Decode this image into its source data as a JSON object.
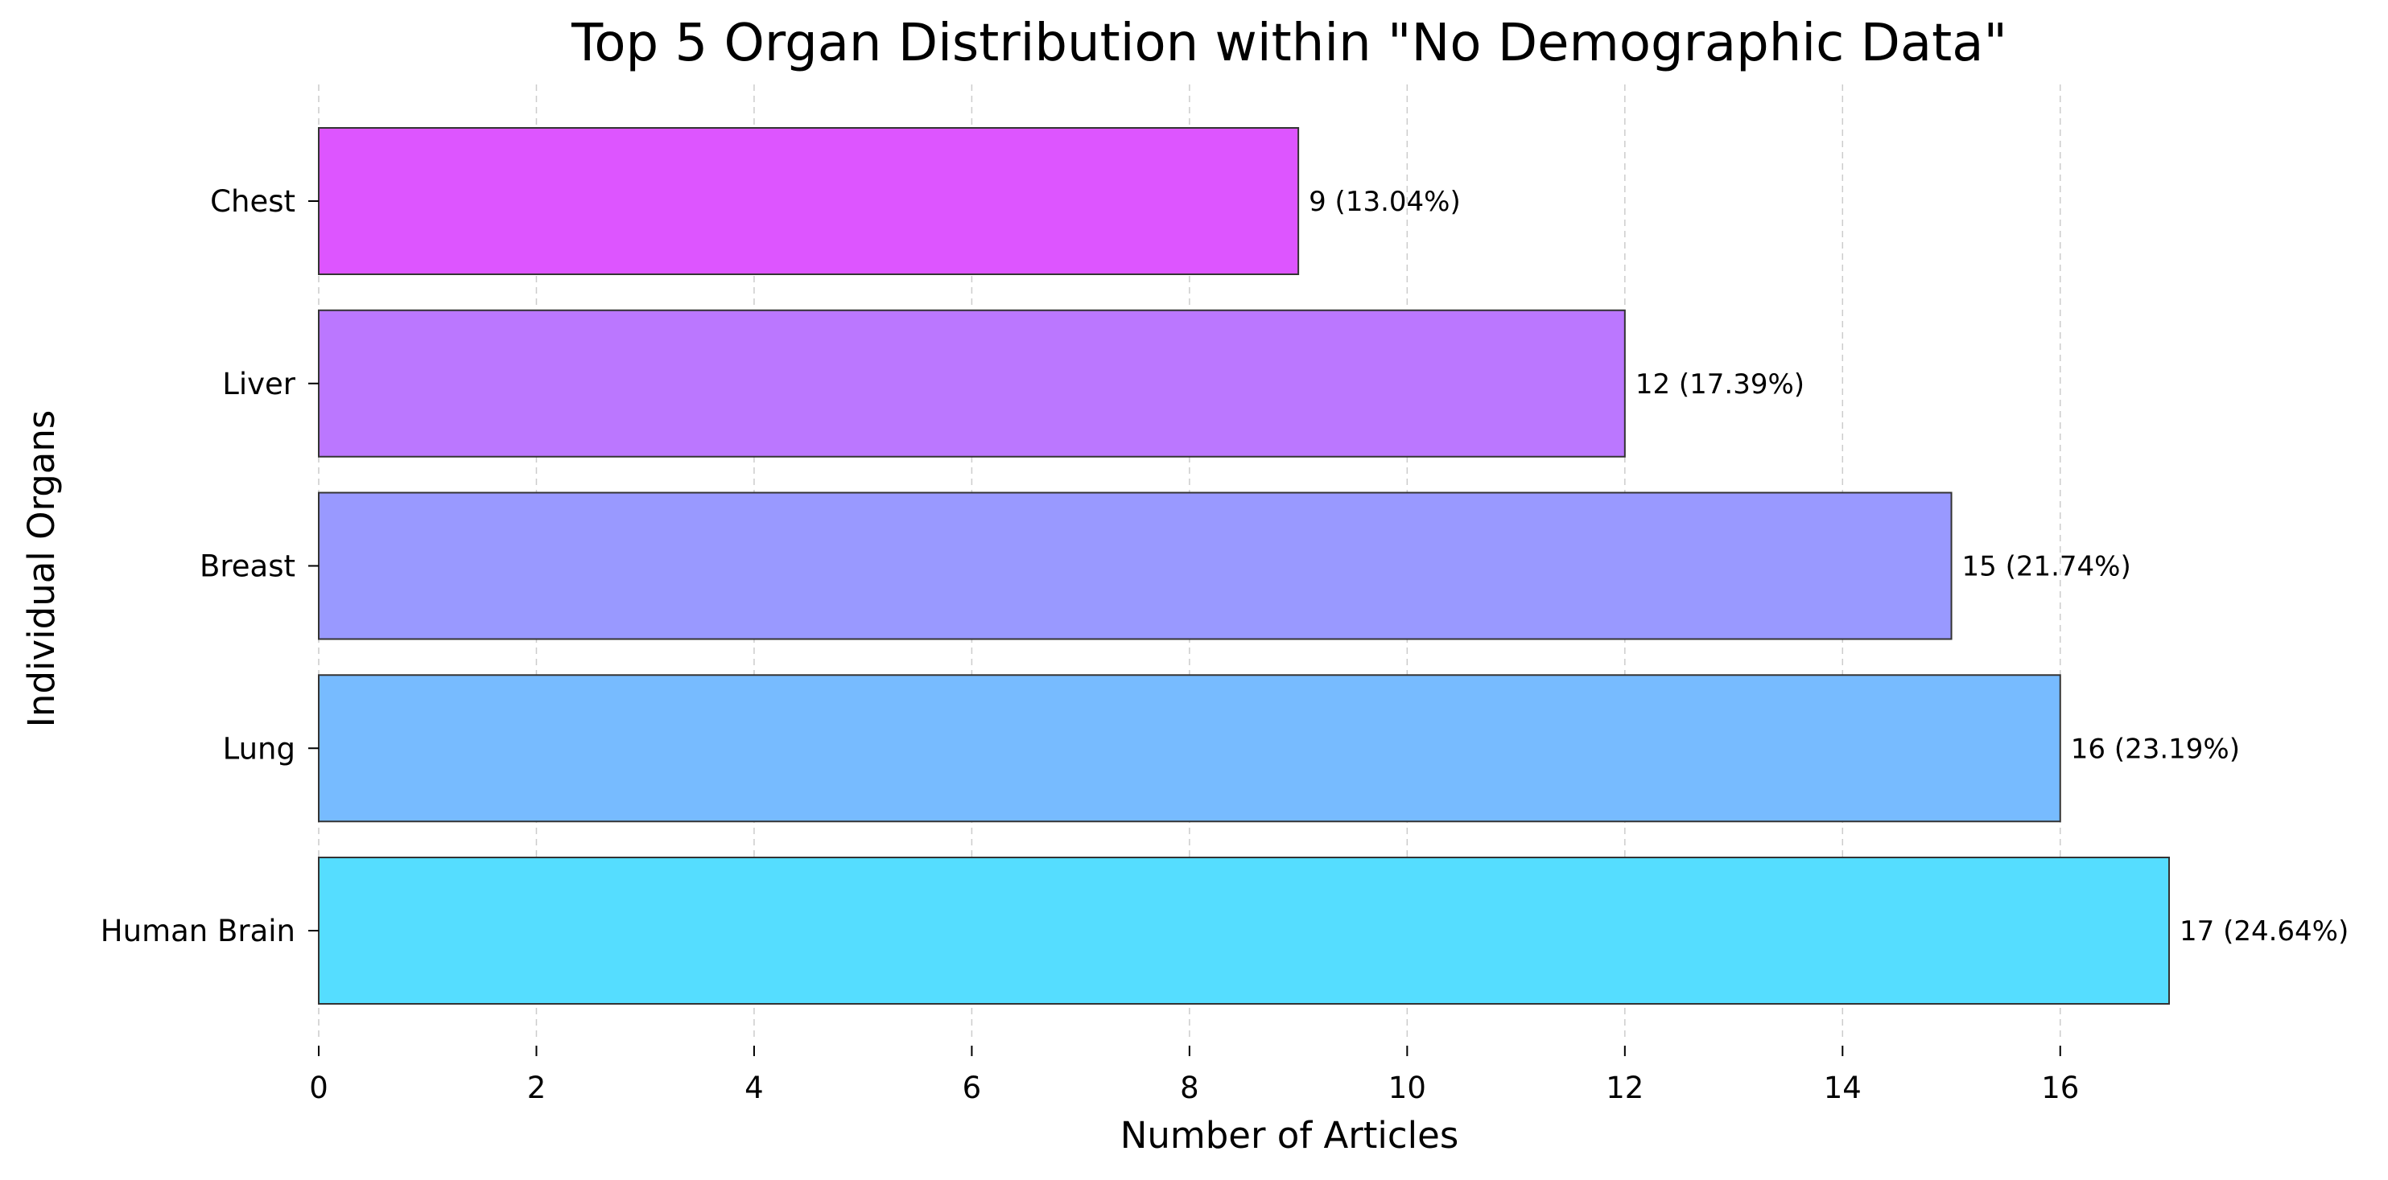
{
  "chart_data": {
    "type": "bar",
    "orientation": "horizontal",
    "title": "Top 5 Organ Distribution within \"No Demographic Data\"",
    "xlabel": "Number of Articles",
    "ylabel": "Individual Organs",
    "categories": [
      "Human Brain",
      "Lung",
      "Breast",
      "Liver",
      "Chest"
    ],
    "values": [
      17,
      16,
      15,
      12,
      9
    ],
    "data_labels": [
      "17 (24.64%)",
      "16 (23.19%)",
      "15 (21.74%)",
      "12 (17.39%)",
      "9 (13.04%)"
    ],
    "colors": [
      "#55DDFF",
      "#77BBFF",
      "#9999FF",
      "#BB77FF",
      "#DD55FF"
    ],
    "xlim": [
      0,
      17
    ],
    "xticks": [
      0,
      2,
      4,
      6,
      8,
      10,
      12,
      14,
      16
    ],
    "grid": "vertical dashed",
    "legend": "none"
  }
}
